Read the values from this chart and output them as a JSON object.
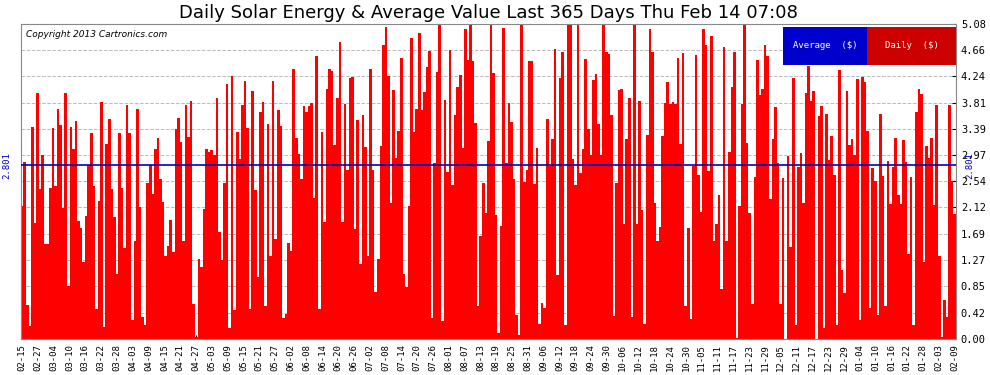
{
  "title": "Daily Solar Energy & Average Value Last 365 Days Thu Feb 14 07:08",
  "copyright": "Copyright 2013 Cartronics.com",
  "average_value": 2.801,
  "average_label": "2.801",
  "ylim": [
    0.0,
    5.08
  ],
  "yticks": [
    0.0,
    0.42,
    0.85,
    1.27,
    1.69,
    2.12,
    2.54,
    2.97,
    3.39,
    3.81,
    4.24,
    4.66,
    5.08
  ],
  "bar_color": "#FF0000",
  "avg_line_color": "#0000CC",
  "bg_color": "#FFFFFF",
  "plot_bg_color": "#FFFFFF",
  "grid_color": "#BBBBBB",
  "title_fontsize": 13,
  "legend_avg_color": "#0000CC",
  "legend_daily_color": "#CC0000",
  "xtick_labels": [
    "02-15",
    "02-27",
    "03-04",
    "03-10",
    "03-16",
    "03-22",
    "03-28",
    "04-03",
    "04-09",
    "04-15",
    "04-21",
    "04-27",
    "05-03",
    "05-09",
    "05-15",
    "05-21",
    "05-27",
    "06-02",
    "06-08",
    "06-14",
    "06-20",
    "06-26",
    "07-02",
    "07-08",
    "07-14",
    "07-20",
    "07-26",
    "08-01",
    "08-07",
    "08-13",
    "08-19",
    "08-25",
    "08-31",
    "09-06",
    "09-12",
    "09-18",
    "09-24",
    "09-30",
    "10-06",
    "10-12",
    "10-18",
    "10-24",
    "10-30",
    "11-05",
    "11-11",
    "11-17",
    "11-23",
    "11-29",
    "12-05",
    "12-11",
    "12-17",
    "12-23",
    "12-29",
    "01-04",
    "01-10",
    "01-16",
    "01-22",
    "01-28",
    "02-03",
    "02-09"
  ],
  "num_bars": 365
}
